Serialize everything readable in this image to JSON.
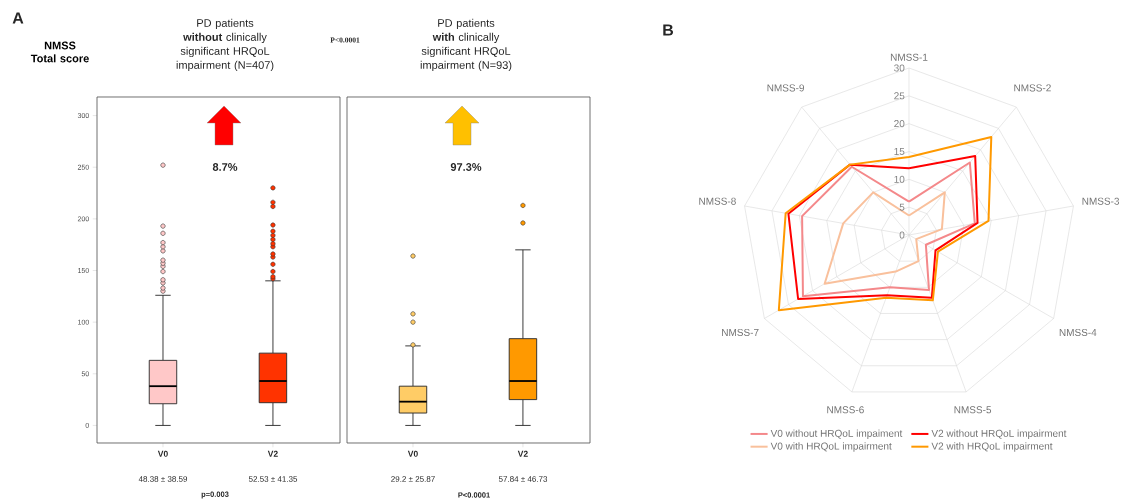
{
  "chart_data": [
    {
      "type": "box",
      "title": "PD patients **without** clinically significant HRQoL impairment (N=407)",
      "ylabel": "NMSS Total score",
      "categories": [
        "V0",
        "V2"
      ],
      "boxes": [
        {
          "low": 0,
          "q1": 21,
          "median": 38,
          "q3": 63,
          "high": 126,
          "outliers": [
            130,
            133,
            138,
            141,
            149,
            154,
            157,
            160,
            169,
            173,
            177,
            186,
            193,
            252
          ]
        },
        {
          "low": 0,
          "q1": 22,
          "median": 43,
          "q3": 70,
          "high": 140,
          "outliers": [
            142,
            144,
            149,
            156,
            163,
            166,
            173,
            176,
            180,
            184,
            188,
            194,
            212,
            216,
            230
          ]
        }
      ],
      "colors": [
        "#ffc8c8",
        "#ff3300"
      ],
      "ylim": [
        -17,
        318
      ],
      "yticks": [
        0,
        50,
        100,
        150,
        200,
        250,
        300
      ],
      "annotations": [
        "A",
        "P<0.0001",
        "8.7%",
        "48.38 ± 38.59",
        "52.53 ± 41.35",
        "p=0.003"
      ]
    },
    {
      "type": "box",
      "title": "PD patients **with** clinically significant HRQoL impairment (N=93)",
      "categories": [
        "V0",
        "V2"
      ],
      "boxes": [
        {
          "low": 0,
          "q1": 12,
          "median": 23,
          "q3": 38,
          "high": 77,
          "outliers": [
            78,
            100,
            108,
            164
          ]
        },
        {
          "low": 0,
          "q1": 25,
          "median": 43,
          "q3": 84,
          "high": 170,
          "outliers": [
            196,
            213
          ]
        }
      ],
      "colors": [
        "#ffcc66",
        "#ff9900"
      ],
      "ylim": [
        -17,
        318
      ],
      "yticks": [
        0,
        50,
        100,
        150,
        200,
        250,
        300
      ],
      "tick_labels": "x",
      "annotations": [
        "97.3%",
        "29.2 ± 25.87",
        "57.84 ± 46.73",
        "P<0.0001"
      ]
    },
    {
      "type": "radar",
      "categories": [
        "NMSS-1",
        "NMSS-2",
        "NMSS-3",
        "NMSS-4",
        "NMSS-5",
        "NMSS-6",
        "NMSS-7",
        "NMSS-8",
        "NMSS-9"
      ],
      "ylim": [
        0,
        30
      ],
      "yticks": [
        0,
        5,
        10,
        15,
        20,
        25,
        30
      ],
      "grid": true,
      "legend": "bottom",
      "series": [
        {
          "name": "V0 without HRQoL impaiment",
          "color": "#f4888a",
          "values": [
            6,
            17,
            12,
            3.5,
            10.5,
            10,
            22,
            19.5,
            16
          ]
        },
        {
          "name": "V2 without HRQoL impairment",
          "color": "#ff0000",
          "values": [
            12,
            18.5,
            12.5,
            5.5,
            12,
            11.5,
            23,
            22,
            16.5
          ]
        },
        {
          "name": "V0 with HRQoL impairment",
          "color": "#f9c09c",
          "values": [
            3.5,
            10,
            6,
            1.5,
            5,
            7,
            17.5,
            12,
            10
          ]
        },
        {
          "name": "V2 with HRQoL impairment",
          "color": "#ff9900",
          "values": [
            14,
            23,
            14.5,
            6,
            12.5,
            12,
            27,
            22.5,
            16.5
          ]
        }
      ],
      "annotations": [
        "B"
      ]
    }
  ]
}
